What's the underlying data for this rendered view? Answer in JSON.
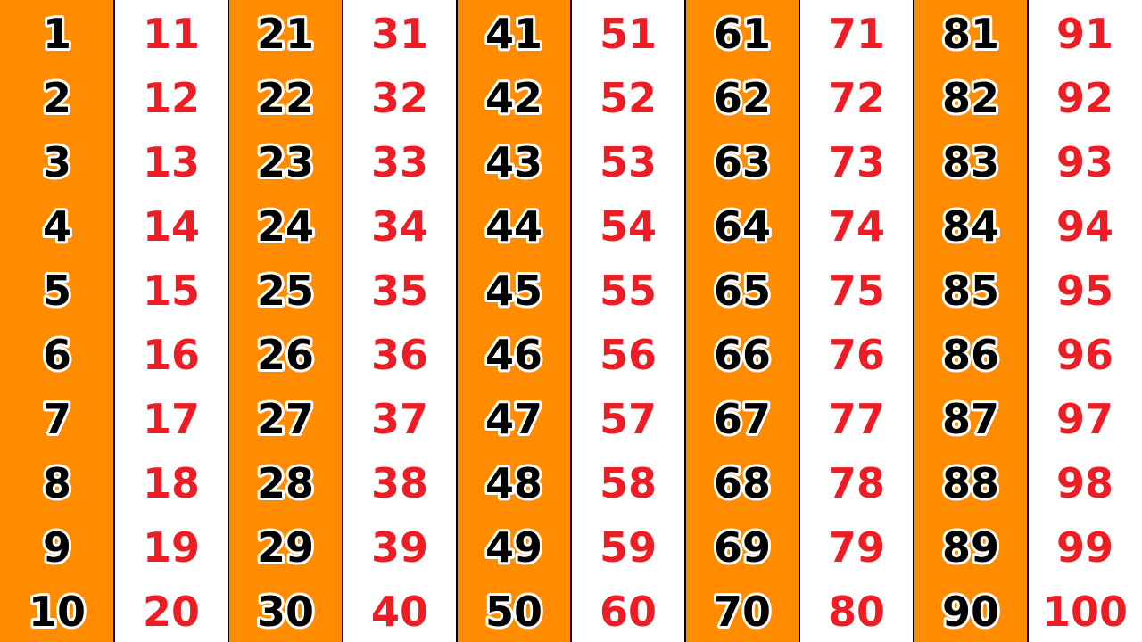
{
  "columns": [
    [
      1,
      2,
      3,
      4,
      5,
      6,
      7,
      8,
      9,
      10
    ],
    [
      11,
      12,
      13,
      14,
      15,
      16,
      17,
      18,
      19,
      20
    ],
    [
      21,
      22,
      23,
      24,
      25,
      26,
      27,
      28,
      29,
      30
    ],
    [
      31,
      32,
      33,
      34,
      35,
      36,
      37,
      38,
      39,
      40
    ],
    [
      41,
      42,
      43,
      44,
      45,
      46,
      47,
      48,
      49,
      50
    ],
    [
      51,
      52,
      53,
      54,
      55,
      56,
      57,
      58,
      59,
      60
    ],
    [
      61,
      62,
      63,
      64,
      65,
      66,
      67,
      68,
      69,
      70
    ],
    [
      71,
      72,
      73,
      74,
      75,
      76,
      77,
      78,
      79,
      80
    ],
    [
      81,
      82,
      83,
      84,
      85,
      86,
      87,
      88,
      89,
      90
    ],
    [
      91,
      92,
      93,
      94,
      95,
      96,
      97,
      98,
      99,
      100
    ]
  ]
}
